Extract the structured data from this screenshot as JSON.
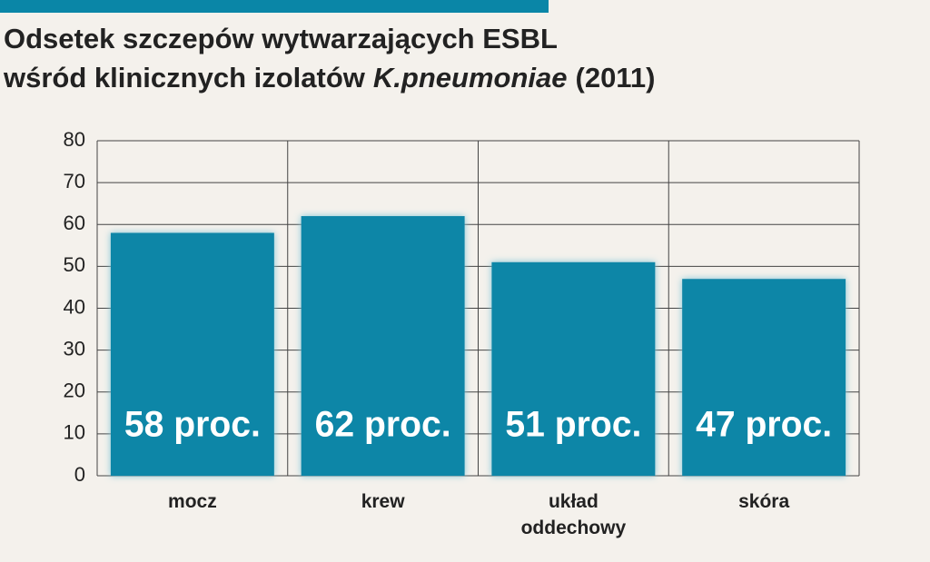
{
  "chart_data": {
    "type": "bar",
    "title": [
      "Odsetek szczepów wytwarzających ESBL",
      "wśród klinicznych izolatów",
      "K.pneumoniae",
      "(2011)"
    ],
    "categories": [
      "mocz",
      "krew",
      "układ oddechowy",
      "skóra"
    ],
    "values": [
      58,
      62,
      51,
      47
    ],
    "value_labels": [
      "58 proc.",
      "62 proc.",
      "51 proc.",
      "47 proc."
    ],
    "color": "#0a86a7",
    "ylim": [
      0,
      80
    ],
    "yticks": [
      0,
      10,
      20,
      30,
      40,
      50,
      60,
      70,
      80
    ],
    "grid": true
  }
}
